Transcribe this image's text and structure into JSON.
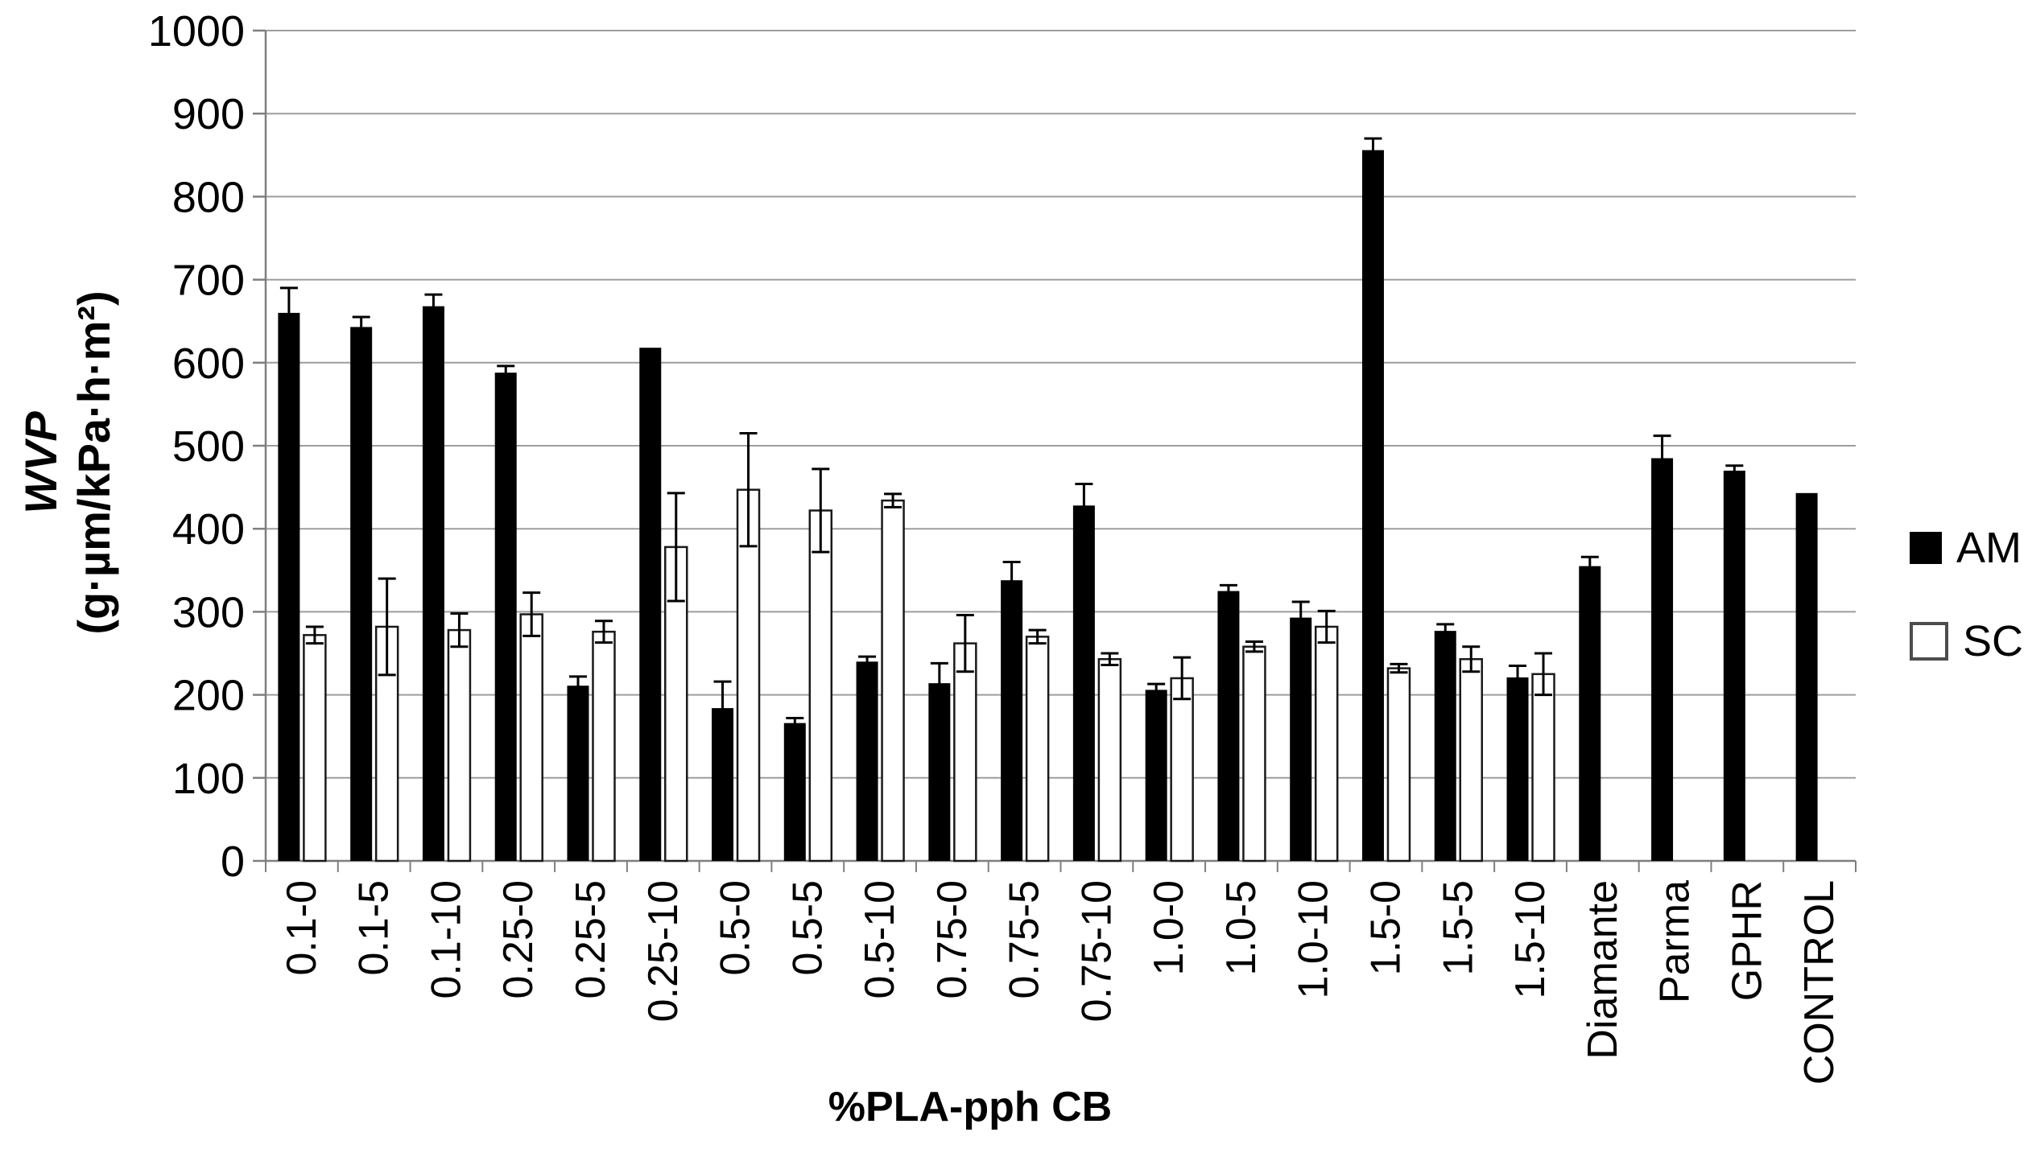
{
  "chart_data": {
    "type": "bar",
    "title": "",
    "xlabel": "%PLA-pph CB",
    "ylabel_line1": "WVP",
    "ylabel_line2": "(g·µm/kPa·h·m²)",
    "ylim": [
      0,
      1000
    ],
    "ytick_step": 100,
    "yticks": [
      0,
      100,
      200,
      300,
      400,
      500,
      600,
      700,
      800,
      900,
      1000
    ],
    "grid": "horizontal-gridlines-on",
    "legend_position": "right",
    "error_bars": true,
    "categories": [
      "0.1-0",
      "0.1-5",
      "0.1-10",
      "0.25-0",
      "0.25-5",
      "0.25-10",
      "0.5-0",
      "0.5-5",
      "0.5-10",
      "0.75-0",
      "0.75-5",
      "0.75-10",
      "1.0-0",
      "1.0-5",
      "1.0-10",
      "1.5-0",
      "1.5-5",
      "1.5-10",
      "Diamante",
      "Parma",
      "GPHR",
      "CONTROL"
    ],
    "series": [
      {
        "name": "AM",
        "fill": "#000000",
        "stroke": null,
        "values": [
          660,
          643,
          668,
          588,
          211,
          618,
          184,
          166,
          240,
          214,
          338,
          428,
          206,
          325,
          293,
          856,
          277,
          221,
          355,
          485,
          470,
          443
        ],
        "errors": [
          30,
          12,
          14,
          8,
          11,
          0,
          32,
          6,
          6,
          24,
          22,
          26,
          7,
          7,
          19,
          14,
          8,
          14,
          11,
          27,
          6,
          0
        ]
      },
      {
        "name": "SC",
        "fill": "#ffffff",
        "stroke": "#1a1a1a",
        "values": [
          272,
          282,
          278,
          297,
          276,
          378,
          447,
          422,
          434,
          262,
          270,
          243,
          220,
          258,
          282,
          232,
          243,
          225,
          null,
          null,
          null,
          null
        ],
        "errors": [
          10,
          58,
          20,
          26,
          13,
          65,
          68,
          50,
          8,
          34,
          8,
          7,
          25,
          6,
          19,
          5,
          15,
          25,
          null,
          null,
          null,
          null
        ]
      }
    ],
    "colors": {
      "gridline": "#9d9d9d",
      "axis": "#7f7f7f",
      "bar_am": "#000000",
      "bar_sc_fill": "#ffffff",
      "bar_sc_border": "#1a1a1a",
      "text": "#000000"
    }
  }
}
